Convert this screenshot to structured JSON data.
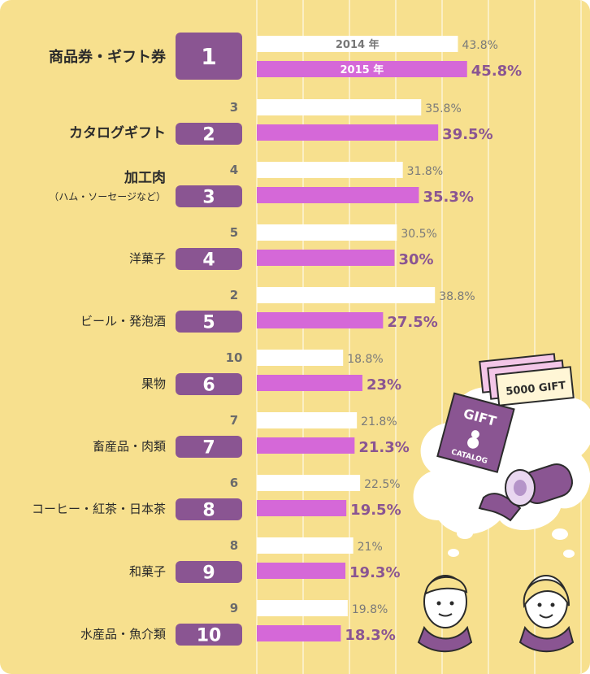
{
  "colors": {
    "background": "#F7E08E",
    "gridline": "#FBEFC4",
    "bar_2014": "#FFFFFF",
    "bar_2015": "#D568D8",
    "rank_badge": "#8A5592",
    "rank_text": "#FFFFFF",
    "label_text": "#2B2B2B",
    "prev_rank_text": "#6B6B6B",
    "value_2014_text": "#7A7A7A",
    "value_2015_text": "#8A5592"
  },
  "chart_data": {
    "type": "bar",
    "orientation": "horizontal",
    "series": [
      {
        "name": "2014 年",
        "values": [
          43.8,
          35.8,
          31.8,
          30.5,
          38.8,
          18.8,
          21.8,
          22.5,
          21,
          19.8
        ],
        "labels": [
          "43.8%",
          "35.8%",
          "31.8%",
          "30.5%",
          "38.8%",
          "18.8%",
          "21.8%",
          "22.5%",
          "21%",
          "19.8%"
        ]
      },
      {
        "name": "2015 年",
        "values": [
          45.8,
          39.5,
          35.3,
          30,
          27.5,
          23,
          21.3,
          19.5,
          19.3,
          18.3
        ],
        "labels": [
          "45.8%",
          "39.5%",
          "35.3%",
          "30%",
          "27.5%",
          "23%",
          "21.3%",
          "19.5%",
          "19.3%",
          "18.3%"
        ]
      }
    ],
    "rows": [
      {
        "rank": "1",
        "prev_rank": "",
        "label": "商品券・ギフト券",
        "sublabel": ""
      },
      {
        "rank": "2",
        "prev_rank": "3",
        "label": "カタログギフト",
        "sublabel": ""
      },
      {
        "rank": "3",
        "prev_rank": "4",
        "label": "加工肉",
        "sublabel": "（ハム・ソーセージなど）"
      },
      {
        "rank": "4",
        "prev_rank": "5",
        "label": "洋菓子",
        "sublabel": ""
      },
      {
        "rank": "5",
        "prev_rank": "2",
        "label": "ビール・発泡酒",
        "sublabel": ""
      },
      {
        "rank": "6",
        "prev_rank": "10",
        "label": "果物",
        "sublabel": ""
      },
      {
        "rank": "7",
        "prev_rank": "7",
        "label": "畜産品・肉類",
        "sublabel": ""
      },
      {
        "rank": "8",
        "prev_rank": "6",
        "label": "コーヒー・紅茶・日本茶",
        "sublabel": ""
      },
      {
        "rank": "9",
        "prev_rank": "8",
        "label": "和菓子",
        "sublabel": ""
      },
      {
        "rank": "10",
        "prev_rank": "9",
        "label": "水産品・魚介類",
        "sublabel": ""
      }
    ],
    "xlim": [
      0,
      55
    ],
    "grid": true,
    "legend": "inside-first-bars"
  },
  "illustration": {
    "gift_ticket_text": "5000 GIFT",
    "catalog_title": "GIFT",
    "catalog_subtitle": "CATALOG"
  }
}
